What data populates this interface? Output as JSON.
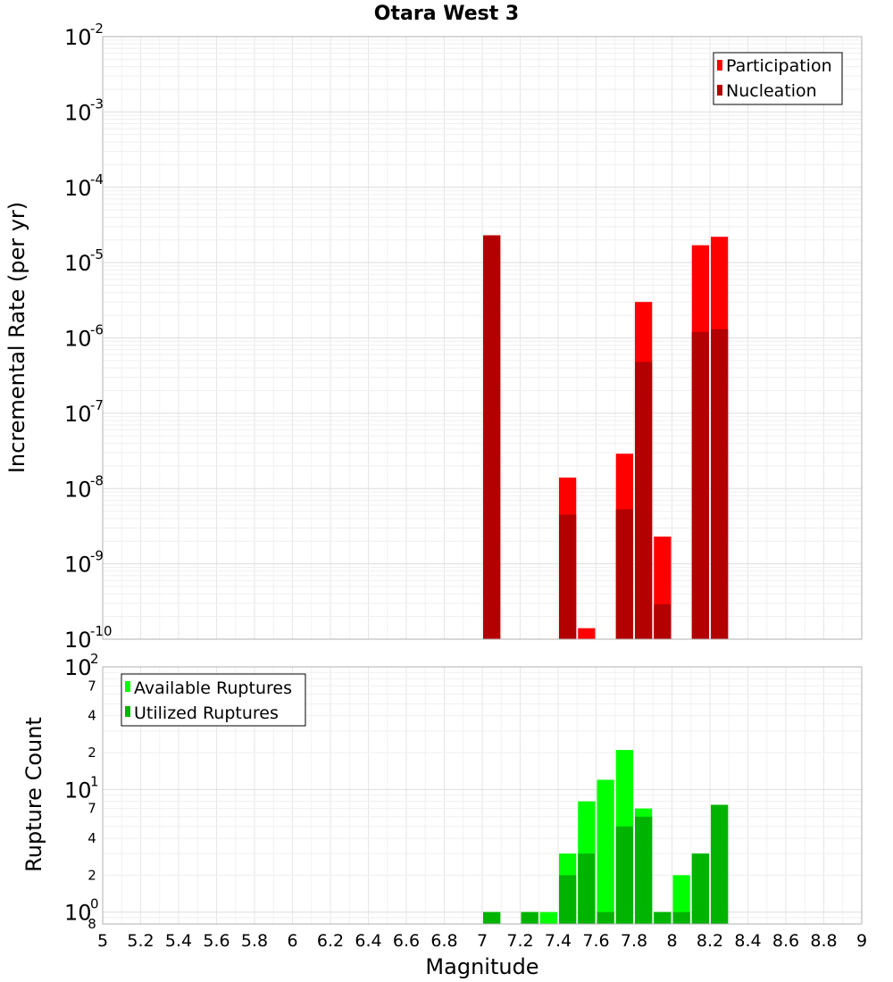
{
  "chart_data": [
    {
      "type": "bar",
      "title": "Otara West 3",
      "xlabel": "Magnitude",
      "ylabel": "Incremental Rate (per yr)",
      "xlim": [
        5,
        9
      ],
      "ylim": [
        1e-10,
        0.01
      ],
      "yscale": "log",
      "x_ticks": [
        "5",
        "5.2",
        "5.4",
        "5.6",
        "5.8",
        "6",
        "6.2",
        "6.4",
        "6.6",
        "6.8",
        "7",
        "7.2",
        "7.4",
        "7.6",
        "7.8",
        "8",
        "8.2",
        "8.4",
        "8.6",
        "8.8",
        "9"
      ],
      "y_ticks": [
        {
          "base": "10",
          "exp": "-10"
        },
        {
          "base": "10",
          "exp": "-9"
        },
        {
          "base": "10",
          "exp": "-8"
        },
        {
          "base": "10",
          "exp": "-7"
        },
        {
          "base": "10",
          "exp": "-6"
        },
        {
          "base": "10",
          "exp": "-5"
        },
        {
          "base": "10",
          "exp": "-4"
        },
        {
          "base": "10",
          "exp": "-3"
        },
        {
          "base": "10",
          "exp": "-2"
        }
      ],
      "legend_position": "top-right",
      "series": [
        {
          "name": "Participation",
          "color": "#ff0000",
          "x": [
            7.05,
            7.45,
            7.55,
            7.75,
            7.85,
            7.95,
            8.15,
            8.25
          ],
          "values": [
            2.3e-05,
            1.4e-08,
            1.4e-10,
            2.9e-08,
            3e-06,
            2.3e-09,
            1.7e-05,
            2.2e-05
          ]
        },
        {
          "name": "Nucleation",
          "color": "#b30000",
          "x": [
            7.05,
            7.45,
            7.75,
            7.85,
            7.95,
            8.15,
            8.25
          ],
          "values": [
            2.3e-05,
            4.5e-09,
            5.3e-09,
            4.8e-07,
            2.9e-10,
            1.2e-06,
            1.3e-06
          ]
        }
      ]
    },
    {
      "type": "bar",
      "title": "",
      "xlabel": "Magnitude",
      "ylabel": "Rupture Count",
      "xlim": [
        5,
        9
      ],
      "ylim": [
        0.8,
        100
      ],
      "yscale": "log",
      "y_ticks": [
        {
          "base": "10",
          "exp": "0"
        },
        {
          "base": "10",
          "exp": "1"
        },
        {
          "base": "10",
          "exp": "2"
        }
      ],
      "y_minor_ticks": [
        "8",
        "2",
        "4",
        "7",
        "2",
        "4",
        "7"
      ],
      "legend_position": "top-left",
      "series": [
        {
          "name": "Available Ruptures",
          "color": "#00ff00",
          "x": [
            7.05,
            7.25,
            7.35,
            7.45,
            7.55,
            7.65,
            7.75,
            7.85,
            7.95,
            8.05,
            8.15,
            8.25
          ],
          "values": [
            1,
            1,
            1,
            3,
            8,
            12,
            21,
            7,
            1,
            2,
            3,
            7.5
          ]
        },
        {
          "name": "Utilized Ruptures",
          "color": "#00b300",
          "x": [
            7.05,
            7.25,
            7.45,
            7.55,
            7.65,
            7.75,
            7.85,
            7.95,
            8.05,
            8.15,
            8.25
          ],
          "values": [
            1,
            1,
            2,
            3,
            1,
            5,
            6,
            1,
            1,
            3,
            7.5
          ]
        }
      ]
    }
  ]
}
